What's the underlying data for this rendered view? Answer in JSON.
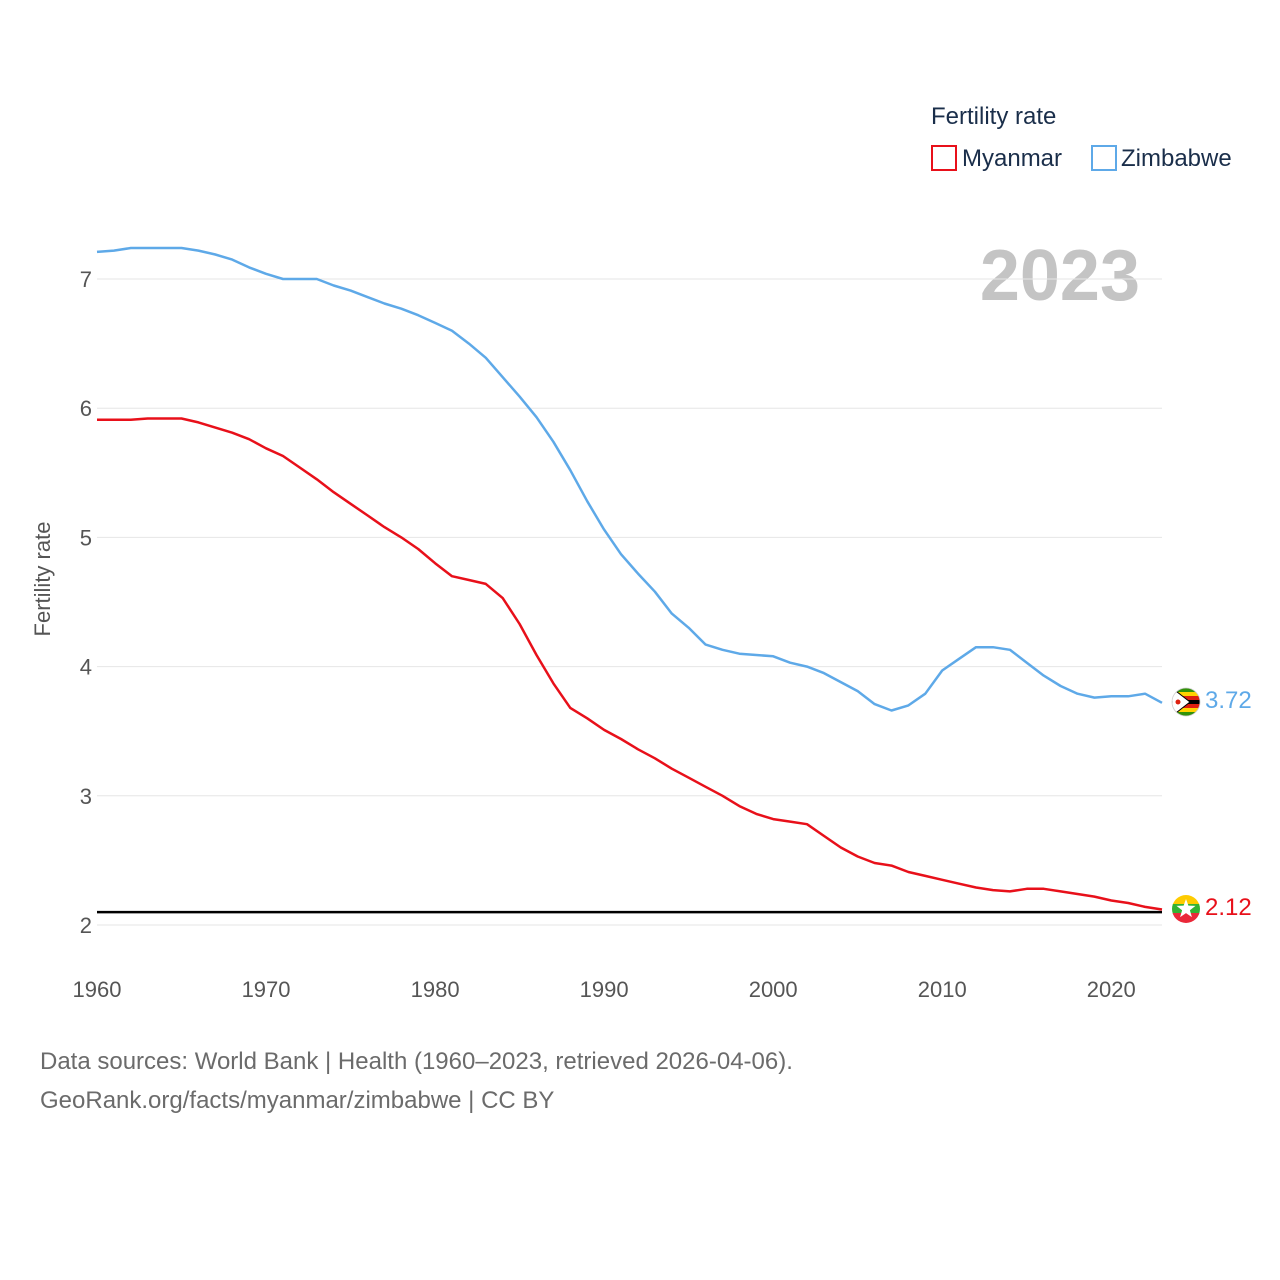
{
  "chart_data": {
    "type": "line",
    "legend_title": "Fertility rate",
    "ylabel": "Fertility rate",
    "xlabel": "",
    "year_label": "2023",
    "xlim": [
      1960,
      2023
    ],
    "ylim": [
      1.9,
      7.45
    ],
    "x_ticks": [
      "1960",
      "1970",
      "1980",
      "1990",
      "2000",
      "2010",
      "2020"
    ],
    "y_ticks": [
      "2",
      "3",
      "4",
      "5",
      "6",
      "7"
    ],
    "reference_line": 2.1,
    "legend_position": "top-right",
    "x": [
      1960,
      1961,
      1962,
      1963,
      1964,
      1965,
      1966,
      1967,
      1968,
      1969,
      1970,
      1971,
      1972,
      1973,
      1974,
      1975,
      1976,
      1977,
      1978,
      1979,
      1980,
      1981,
      1982,
      1983,
      1984,
      1985,
      1986,
      1987,
      1988,
      1989,
      1990,
      1991,
      1992,
      1993,
      1994,
      1995,
      1996,
      1997,
      1998,
      1999,
      2000,
      2001,
      2002,
      2003,
      2004,
      2005,
      2006,
      2007,
      2008,
      2009,
      2010,
      2011,
      2012,
      2013,
      2014,
      2015,
      2016,
      2017,
      2018,
      2019,
      2020,
      2021,
      2022,
      2023
    ],
    "series": [
      {
        "name": "Myanmar",
        "color": "#e8101a",
        "flag": "myanmar-flag",
        "end_label": "2.12",
        "values": [
          5.91,
          5.91,
          5.91,
          5.92,
          5.92,
          5.92,
          5.89,
          5.85,
          5.81,
          5.76,
          5.69,
          5.63,
          5.54,
          5.45,
          5.35,
          5.26,
          5.17,
          5.08,
          5.0,
          4.91,
          4.8,
          4.7,
          4.67,
          4.64,
          4.53,
          4.33,
          4.09,
          3.87,
          3.68,
          3.6,
          3.51,
          3.44,
          3.36,
          3.29,
          3.21,
          3.14,
          3.07,
          3.0,
          2.92,
          2.86,
          2.82,
          2.8,
          2.78,
          2.69,
          2.6,
          2.53,
          2.48,
          2.46,
          2.41,
          2.38,
          2.35,
          2.32,
          2.29,
          2.27,
          2.26,
          2.28,
          2.28,
          2.26,
          2.24,
          2.22,
          2.19,
          2.17,
          2.14,
          2.12
        ]
      },
      {
        "name": "Zimbabwe",
        "color": "#5ea9e8",
        "flag": "zimbabwe-flag",
        "end_label": "3.72",
        "values": [
          7.21,
          7.22,
          7.24,
          7.24,
          7.24,
          7.24,
          7.22,
          7.19,
          7.15,
          7.09,
          7.04,
          7.0,
          7.0,
          7.0,
          6.95,
          6.91,
          6.86,
          6.81,
          6.77,
          6.72,
          6.66,
          6.6,
          6.5,
          6.39,
          6.24,
          6.09,
          5.93,
          5.74,
          5.52,
          5.28,
          5.06,
          4.87,
          4.72,
          4.58,
          4.41,
          4.3,
          4.17,
          4.13,
          4.1,
          4.09,
          4.08,
          4.03,
          4.0,
          3.95,
          3.88,
          3.81,
          3.71,
          3.66,
          3.7,
          3.79,
          3.97,
          4.06,
          4.15,
          4.15,
          4.13,
          4.03,
          3.93,
          3.85,
          3.79,
          3.76,
          3.77,
          3.77,
          3.79,
          3.72
        ]
      }
    ]
  },
  "footer": {
    "line1": "Data sources: World Bank | Health (1960–2023, retrieved 2026-04-06).",
    "line2": "GeoRank.org/facts/myanmar/zimbabwe | CC BY"
  }
}
